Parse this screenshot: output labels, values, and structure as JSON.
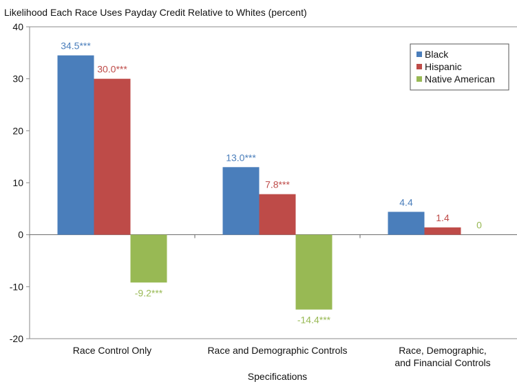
{
  "chart_data": {
    "type": "bar",
    "title": "Likelihood Each Race Uses Payday Credit Relative to Whites (percent)",
    "xlabel": "Specifications",
    "ylabel": "",
    "ylim": [
      -20,
      40
    ],
    "yticks": [
      40,
      30,
      20,
      10,
      0,
      -10,
      -20
    ],
    "ytick_labels": [
      "40",
      "30",
      "20",
      "10",
      "0",
      "-10",
      "-20"
    ],
    "grid": false,
    "legend_position": "top-right",
    "categories": [
      "Race Control Only",
      "Race and Demographic Controls",
      "Race, Demographic, and Financial Controls"
    ],
    "category_lines": [
      [
        "Race Control Only"
      ],
      [
        "Race and Demographic Controls"
      ],
      [
        "Race, Demographic,",
        "and Financial Controls"
      ]
    ],
    "series": [
      {
        "name": "Black",
        "color": "#4a7ebb",
        "values": [
          34.5,
          13.0,
          4.4
        ],
        "labels": [
          "34.5***",
          "13.0***",
          "4.4"
        ]
      },
      {
        "name": "Hispanic",
        "color": "#be4b48",
        "values": [
          30.0,
          7.8,
          1.4
        ],
        "labels": [
          "30.0***",
          "7.8***",
          "1.4"
        ]
      },
      {
        "name": "Native American",
        "color": "#98b954",
        "values": [
          -9.2,
          -14.4,
          0
        ],
        "labels": [
          "-9.2***",
          "-14.4***",
          "0"
        ]
      }
    ]
  }
}
